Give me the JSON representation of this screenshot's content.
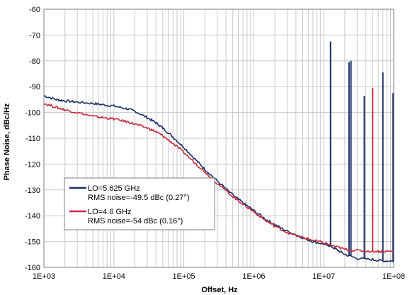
{
  "chart_data": {
    "type": "line",
    "title": "",
    "xlabel": "Offset, Hz",
    "ylabel": "Phase Noise, dBc/Hz",
    "x_scale": "log",
    "xlim": [
      1000,
      100000000
    ],
    "ylim": [
      -160,
      -60
    ],
    "grid": true,
    "x_tick_labels": [
      "1E+03",
      "1E+04",
      "1E+05",
      "1E+06",
      "1E+07",
      "1E+08"
    ],
    "y_tick_labels": [
      "-60",
      "-70",
      "-80",
      "-90",
      "-100",
      "-110",
      "-120",
      "-130",
      "-140",
      "-150",
      "-160"
    ],
    "legend_position": "bottom-left",
    "series": [
      {
        "name": "LO=5.625 GHz",
        "legend_line1": "LO=5.625 GHz",
        "legend_line2": "RMS noise=-49.5 dBc (0.27°)",
        "color": "#1c2e63",
        "x": [
          1000,
          1500,
          2000,
          3000,
          5000,
          7000,
          10000,
          15000,
          20000,
          30000,
          40000,
          50000,
          70000,
          100000,
          150000,
          200000,
          300000,
          500000,
          700000,
          1000000,
          1500000,
          2000000,
          3000000,
          5000000,
          7000000,
          10000000,
          12000000,
          15000000,
          20000000,
          30000000,
          50000000,
          70000000,
          100000000
        ],
        "y": [
          -93.5,
          -95,
          -95.5,
          -96,
          -96.5,
          -97,
          -97.5,
          -98.5,
          -99.5,
          -102,
          -104,
          -106,
          -109.5,
          -113.5,
          -118.5,
          -122,
          -126.5,
          -132,
          -135,
          -138,
          -141.5,
          -143.5,
          -146,
          -148.5,
          -150,
          -151,
          -151.5,
          -153,
          -155,
          -156.5,
          -157,
          -157.5,
          -157.5
        ],
        "spurs": [
          {
            "x": 12500000,
            "y": -72.5
          },
          {
            "x": 23000000,
            "y": -80.5
          },
          {
            "x": 24500000,
            "y": -80
          },
          {
            "x": 38000000,
            "y": -93.5
          },
          {
            "x": 70000000,
            "y": -84.5
          },
          {
            "x": 98000000,
            "y": -92.5
          }
        ]
      },
      {
        "name": "LO=4.6 GHz",
        "legend_line1": "LO=4.6 GHz",
        "legend_line2": "RMS noise=-54 dBc (0.16°)",
        "color": "#c8283c",
        "x": [
          1000,
          1500,
          2000,
          3000,
          5000,
          7000,
          10000,
          15000,
          20000,
          30000,
          40000,
          50000,
          70000,
          100000,
          150000,
          200000,
          300000,
          500000,
          700000,
          1000000,
          1500000,
          2000000,
          3000000,
          5000000,
          7000000,
          10000000,
          15000000,
          20000000,
          30000000,
          50000000,
          70000000,
          100000000
        ],
        "y": [
          -96.5,
          -98,
          -99,
          -100,
          -101.5,
          -102,
          -102.5,
          -103.5,
          -104.5,
          -106,
          -107.5,
          -109,
          -112,
          -115.5,
          -120,
          -123,
          -127.5,
          -132.5,
          -135.5,
          -138.5,
          -142,
          -144,
          -146.5,
          -148.5,
          -149.5,
          -150.5,
          -152,
          -153,
          -153.5,
          -153.8,
          -153.8,
          -153.8
        ],
        "spurs": [
          {
            "x": 50000000,
            "y": -90.5
          }
        ]
      }
    ]
  }
}
